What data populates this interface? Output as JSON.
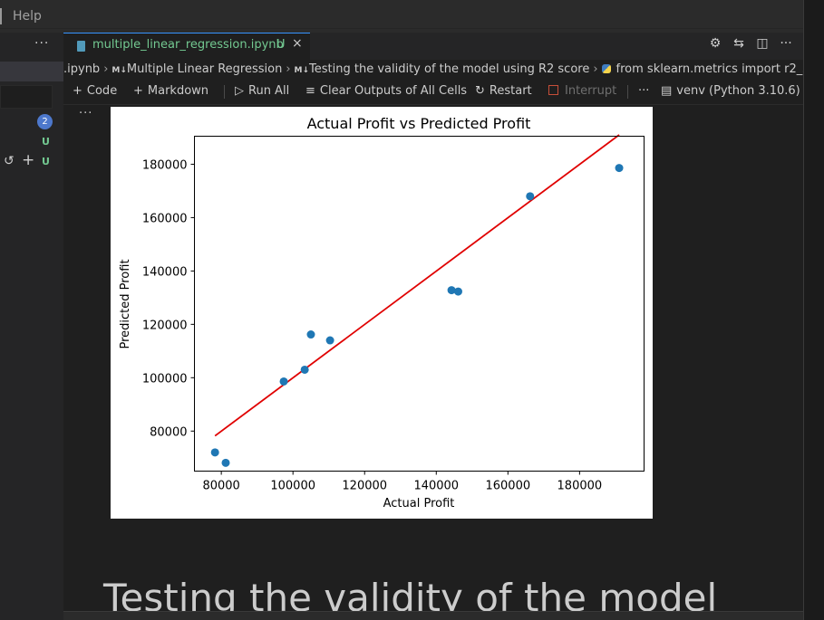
{
  "menubar": {
    "help": "Help"
  },
  "sidebar": {
    "more": "···",
    "badge": "2",
    "status_u1": "U",
    "undo_icon": "↺",
    "plus_icon": "+",
    "status_u2": "U"
  },
  "tab": {
    "title": "multiple_linear_regression.ipynb",
    "modified": "U",
    "close": "×"
  },
  "tab_actions": {
    "gear_icon": "⚙",
    "compare_icon": "⇆",
    "split_icon": "◫",
    "more": "···"
  },
  "breadcrumb": {
    "file": ".ipynb",
    "md_tag": "M↓",
    "item1": "Multiple Linear Regression",
    "item2": "Testing the validity of the model using R2 score",
    "item3": "from sklearn.metrics import r2_score"
  },
  "toolbar": {
    "code": "Code",
    "markdown": "Markdown",
    "run_all": "Run All",
    "clear_outputs": "Clear Outputs of All Cells",
    "restart": "Restart",
    "interrupt": "Interrupt",
    "more": "···",
    "kernel": "venv (Python 3.10.6)"
  },
  "output": {
    "more": "···"
  },
  "chart_data": {
    "type": "scatter",
    "title": "Actual Profit vs Predicted Profit",
    "xlabel": "Actual Profit",
    "ylabel": "Predicted Profit",
    "xlim": [
      72500,
      198000
    ],
    "ylim": [
      65000,
      190500
    ],
    "xticks": [
      80000,
      100000,
      120000,
      140000,
      160000,
      180000
    ],
    "yticks": [
      80000,
      100000,
      120000,
      140000,
      160000,
      180000
    ],
    "x": [
      78240,
      81229,
      97427,
      103282,
      105008,
      110352,
      144259,
      146121,
      166188,
      191050
    ],
    "y": [
      72000,
      68100,
      98600,
      103000,
      116200,
      114000,
      132800,
      132300,
      168000,
      178600
    ],
    "fit_line": {
      "x": [
        78240,
        191050
      ],
      "y": [
        78200,
        191000
      ]
    },
    "point_color": "#1f77b4",
    "line_color": "#e00000",
    "grid": false
  },
  "markdown_heading": "Testing the validity of the model"
}
